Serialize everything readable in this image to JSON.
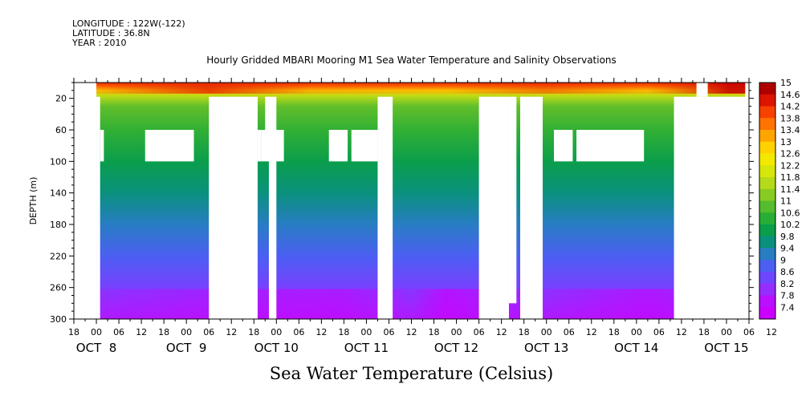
{
  "meta": {
    "longitude": "LONGITUDE : 122W(-122)",
    "latitude": "LATITUDE : 36.8N",
    "year": "YEAR : 2010"
  },
  "chart_data": {
    "type": "heatmap",
    "title": "Hourly Gridded MBARI Mooring M1 Sea Water Temperature and Salinity Observations",
    "xlabel": "",
    "ylabel": "DEPTH (m)",
    "colorbar_label": "Sea Water Temperature (Celsius)",
    "x_start_hour": -6,
    "x_end_hour": 174,
    "xlim_dates": [
      "OCT 7 18:00",
      "OCT 15 06:00"
    ],
    "ylim": [
      300,
      0
    ],
    "y_reversed": true,
    "y_ticks": [
      20,
      60,
      100,
      140,
      180,
      220,
      260,
      300
    ],
    "x_hour_ticks": [
      "18",
      "00",
      "06",
      "12",
      "18",
      "00",
      "06",
      "12",
      "18",
      "00",
      "06",
      "12",
      "18",
      "00",
      "06",
      "12",
      "18",
      "00",
      "06",
      "12",
      "18",
      "00",
      "06",
      "12",
      "18",
      "00",
      "06",
      "12",
      "18",
      "00",
      "06",
      "12"
    ],
    "x_day_labels": [
      {
        "label": "OCT  8",
        "hour": 0
      },
      {
        "label": "OCT  9",
        "hour": 24
      },
      {
        "label": "OCT 10",
        "hour": 48
      },
      {
        "label": "OCT 11",
        "hour": 72
      },
      {
        "label": "OCT 12",
        "hour": 96
      },
      {
        "label": "OCT 13",
        "hour": 120
      },
      {
        "label": "OCT 14",
        "hour": 144
      },
      {
        "label": "OCT 15",
        "hour": 168
      }
    ],
    "colorbar": {
      "min": 7.4,
      "max": 15.0,
      "step": 0.4,
      "labels": [
        "15",
        "14.6",
        "14.2",
        "13.8",
        "13.4",
        "13",
        "12.6",
        "12.2",
        "11.8",
        "11.4",
        "11",
        "10.6",
        "10.2",
        "9.8",
        "9.4",
        "9",
        "8.6",
        "8.2",
        "7.8",
        "7.4"
      ]
    },
    "temperature_profile": [
      {
        "depth": 0,
        "temp": 14.2
      },
      {
        "depth": 5,
        "temp": 13.6
      },
      {
        "depth": 10,
        "temp": 12.8
      },
      {
        "depth": 18,
        "temp": 11.6
      },
      {
        "depth": 30,
        "temp": 10.9
      },
      {
        "depth": 60,
        "temp": 10.5
      },
      {
        "depth": 100,
        "temp": 10.0
      },
      {
        "depth": 140,
        "temp": 9.6
      },
      {
        "depth": 180,
        "temp": 9.2
      },
      {
        "depth": 220,
        "temp": 8.8
      },
      {
        "depth": 260,
        "temp": 8.3
      },
      {
        "depth": 300,
        "temp": 7.8
      }
    ],
    "data_gaps": [
      {
        "t0": -6,
        "t1": 0,
        "d0": 0,
        "d1": 300
      },
      {
        "t0": 0,
        "t1": 1,
        "d0": 18,
        "d1": 300
      },
      {
        "t0": 1,
        "t1": 2,
        "d0": 60,
        "d1": 100
      },
      {
        "t0": 13,
        "t1": 26,
        "d0": 60,
        "d1": 100
      },
      {
        "t0": 30,
        "t1": 43,
        "d0": 18,
        "d1": 300
      },
      {
        "t0": 43,
        "t1": 44,
        "d0": 60,
        "d1": 100
      },
      {
        "t0": 44,
        "t1": 50,
        "d0": 60,
        "d1": 100
      },
      {
        "t0": 45,
        "t1": 46,
        "d0": 18,
        "d1": 60
      },
      {
        "t0": 46,
        "t1": 48,
        "d0": 18,
        "d1": 300
      },
      {
        "t0": 62,
        "t1": 67,
        "d0": 60,
        "d1": 100
      },
      {
        "t0": 68,
        "t1": 75,
        "d0": 60,
        "d1": 100
      },
      {
        "t0": 75,
        "t1": 79,
        "d0": 18,
        "d1": 300
      },
      {
        "t0": 102,
        "t1": 110,
        "d0": 18,
        "d1": 300
      },
      {
        "t0": 110,
        "t1": 112,
        "d0": 18,
        "d1": 280
      },
      {
        "t0": 113,
        "t1": 119,
        "d0": 18,
        "d1": 300
      },
      {
        "t0": 122,
        "t1": 127,
        "d0": 60,
        "d1": 100
      },
      {
        "t0": 128,
        "t1": 146,
        "d0": 60,
        "d1": 100
      },
      {
        "t0": 154,
        "t1": 174,
        "d0": 18,
        "d1": 300
      },
      {
        "t0": 160,
        "t1": 163,
        "d0": 0,
        "d1": 18
      },
      {
        "t0": 173,
        "t1": 174,
        "d0": 0,
        "d1": 300
      }
    ]
  }
}
